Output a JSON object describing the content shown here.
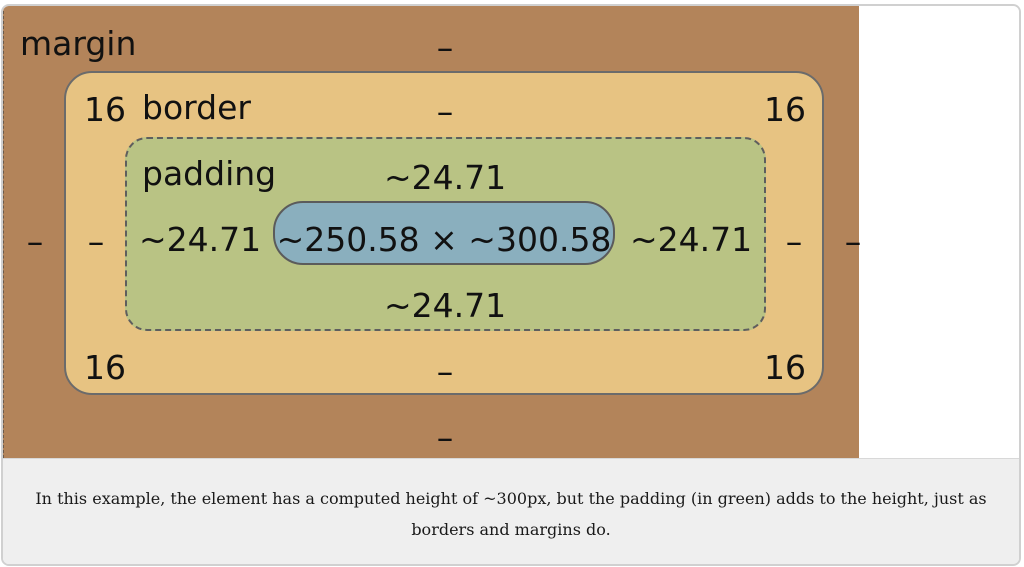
{
  "diagram": {
    "margin": {
      "label": "margin",
      "top": "–",
      "bottom": "–",
      "left": "–",
      "right": "–",
      "color": "#b3845a"
    },
    "border": {
      "label": "border",
      "top": "–",
      "bottom": "–",
      "left": "–",
      "right": "–",
      "corner_top_left": "16",
      "corner_top_right": "16",
      "corner_bottom_left": "16",
      "corner_bottom_right": "16",
      "color": "#e7c382"
    },
    "padding": {
      "label": "padding",
      "top": "~24.71",
      "bottom": "~24.71",
      "left": "~24.71",
      "right": "~24.71",
      "color": "#b9c384"
    },
    "content": {
      "size": "~250.58 × ~300.58",
      "color": "#8aafbe"
    }
  },
  "caption": {
    "text": "In this example, the element has a computed height of ~300px, but the padding (in green) adds to the height, just as borders and margins do."
  }
}
